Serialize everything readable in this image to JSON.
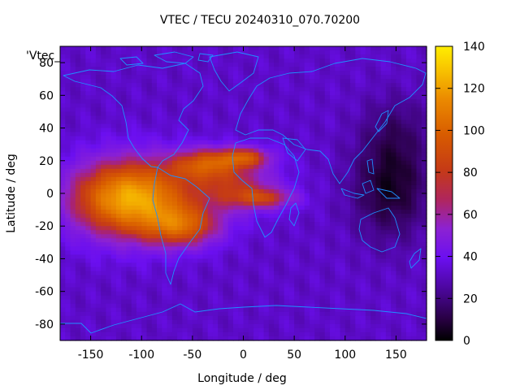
{
  "title": "VTEC / TECU 20240310_070.70200",
  "xlabel": "Longitude / deg",
  "ylabel": "Latitude / deg",
  "stray_label": "'Vtec_",
  "coastline_color": "#1e90ff",
  "colorbar": {
    "min": 0,
    "max": 140,
    "ticks": [
      "0",
      "20",
      "40",
      "60",
      "80",
      "100",
      "120",
      "140"
    ]
  },
  "chart_data": {
    "type": "heatmap",
    "title": "VTEC / TECU 20240310_070.70200",
    "xlabel": "Longitude / deg",
    "ylabel": "Latitude / deg",
    "xlim": [
      -180,
      180
    ],
    "ylim": [
      -90,
      90
    ],
    "x_ticks": [
      -150,
      -100,
      -50,
      0,
      50,
      100,
      150
    ],
    "y_ticks": [
      -80,
      -60,
      -40,
      -20,
      0,
      20,
      40,
      60,
      80
    ],
    "colorbar_range": [
      0,
      140
    ],
    "background_tec": 30,
    "features": [
      {
        "name": "equatorial-anomaly-main",
        "lon": -110,
        "lat": -3,
        "peak_tec": 122
      },
      {
        "name": "anomaly-north-crest",
        "lon": -40,
        "lat": 18,
        "peak_tec": 95
      },
      {
        "name": "anomaly-south-crest",
        "lon": -60,
        "lat": -20,
        "peak_tec": 100
      },
      {
        "name": "eastward-tongue-north",
        "lon": 0,
        "lat": 22,
        "peak_tec": 88
      },
      {
        "name": "eastward-tongue-south",
        "lon": 20,
        "lat": -3,
        "peak_tec": 80
      },
      {
        "name": "atlantic-africa-band",
        "lon": -10,
        "lat": 5,
        "peak_tec": 75
      },
      {
        "name": "night-minimum-pacific",
        "lon": 145,
        "lat": 5,
        "peak_tec": 5
      },
      {
        "name": "night-minimum-east-asia",
        "lon": 150,
        "lat": 40,
        "peak_tec": 15
      }
    ]
  }
}
